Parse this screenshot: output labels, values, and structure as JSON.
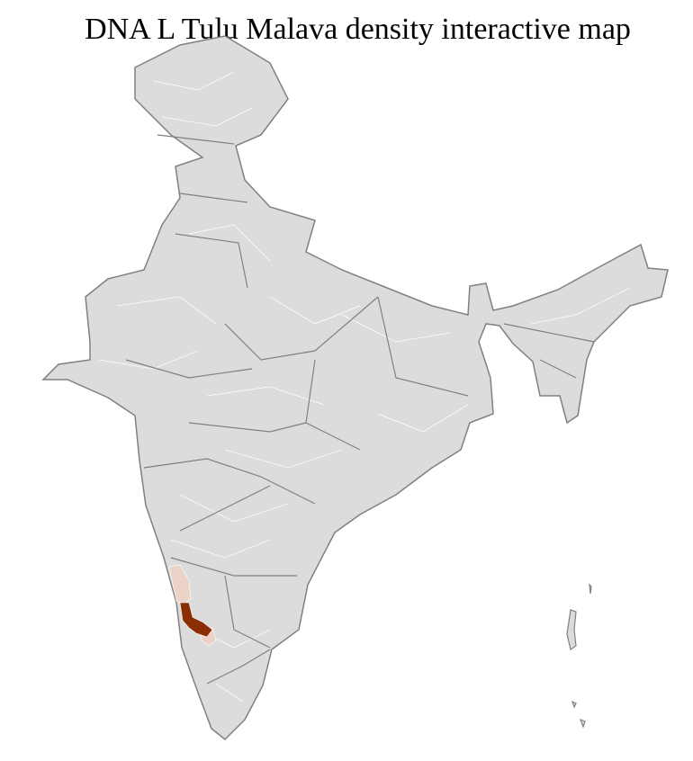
{
  "title": "DNA L Tulu Malava density interactive map",
  "colors": {
    "base_fill": "#dcdcdc",
    "state_border": "#808080",
    "district_border": "#ffffff",
    "high_density": "#8b2e06",
    "low_density": "#ecd3c8"
  },
  "highlighted_regions": [
    {
      "level": "high"
    },
    {
      "level": "low"
    },
    {
      "level": "low"
    }
  ]
}
